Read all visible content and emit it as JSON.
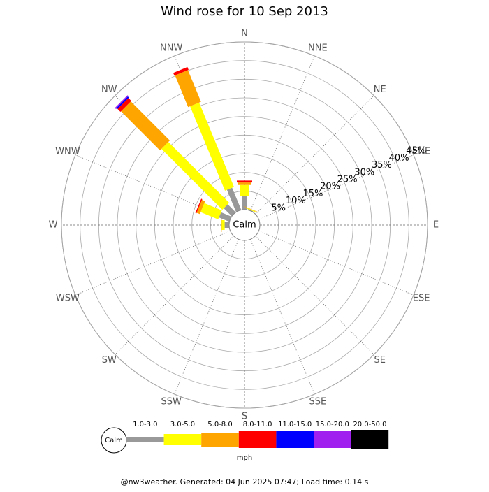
{
  "chart_data": {
    "type": "windrose",
    "title": "Wind rose for 10 Sep 2013",
    "categories": [
      "N",
      "NNE",
      "NE",
      "ENE",
      "E",
      "ESE",
      "SE",
      "SSE",
      "S",
      "SSW",
      "SW",
      "WSW",
      "W",
      "WNW",
      "NW",
      "NNW"
    ],
    "series": [
      {
        "name": "1.0-3.0",
        "color": "#999999",
        "values": [
          3.6,
          0.2,
          0,
          0,
          0,
          0,
          0,
          0,
          0,
          0,
          0,
          0,
          1.2,
          3,
          3,
          6.4
        ]
      },
      {
        "name": "3.0-5.0",
        "color": "#ffff00",
        "values": [
          3,
          0.2,
          0,
          0,
          0,
          0,
          0,
          0,
          0,
          0,
          0,
          0,
          0.8,
          5.1,
          23.1,
          24.5
        ]
      },
      {
        "name": "5.0-8.0",
        "color": "#ffa500",
        "values": [
          0.7,
          0.1,
          0,
          0,
          0,
          0,
          0,
          0,
          0,
          0,
          0,
          0,
          0.1,
          0.9,
          14.8,
          9.2
        ]
      },
      {
        "name": "8.0-11.0",
        "color": "#ff0000",
        "values": [
          0.5,
          0,
          0,
          0,
          0,
          0,
          0,
          0,
          0,
          0,
          0,
          0,
          0,
          0.3,
          1.1,
          0.8
        ]
      },
      {
        "name": "11.0-15.0",
        "color": "#0000ff",
        "values": [
          0,
          0,
          0,
          0,
          0,
          0,
          0,
          0,
          0,
          0,
          0,
          0,
          0,
          0,
          0.4,
          0
        ]
      },
      {
        "name": "15.0-20.0",
        "color": "#a020f0",
        "values": [
          0,
          0,
          0,
          0,
          0,
          0,
          0,
          0,
          0,
          0,
          0,
          0,
          0,
          0,
          0.3,
          0
        ]
      },
      {
        "name": "20.0-50.0",
        "color": "#000000",
        "values": [
          0,
          0,
          0,
          0,
          0,
          0,
          0,
          0,
          0,
          0,
          0,
          0,
          0,
          0,
          0,
          0
        ]
      }
    ],
    "rlim": [
      0,
      45
    ],
    "rticks": [
      {
        "value": 5,
        "label": "5%"
      },
      {
        "value": 10,
        "label": "10%"
      },
      {
        "value": 15,
        "label": "15%"
      },
      {
        "value": 20,
        "label": "20%"
      },
      {
        "value": 25,
        "label": "25%"
      },
      {
        "value": 30,
        "label": "30%"
      },
      {
        "value": 35,
        "label": "35%"
      },
      {
        "value": 40,
        "label": "40%"
      },
      {
        "value": 45,
        "label": "45%"
      }
    ],
    "calm_label": "Calm",
    "legend_unit": "mph",
    "footer": "@nw3weather. Generated: 04 Jun 2025 07:47; Load time: 0.14 s"
  }
}
